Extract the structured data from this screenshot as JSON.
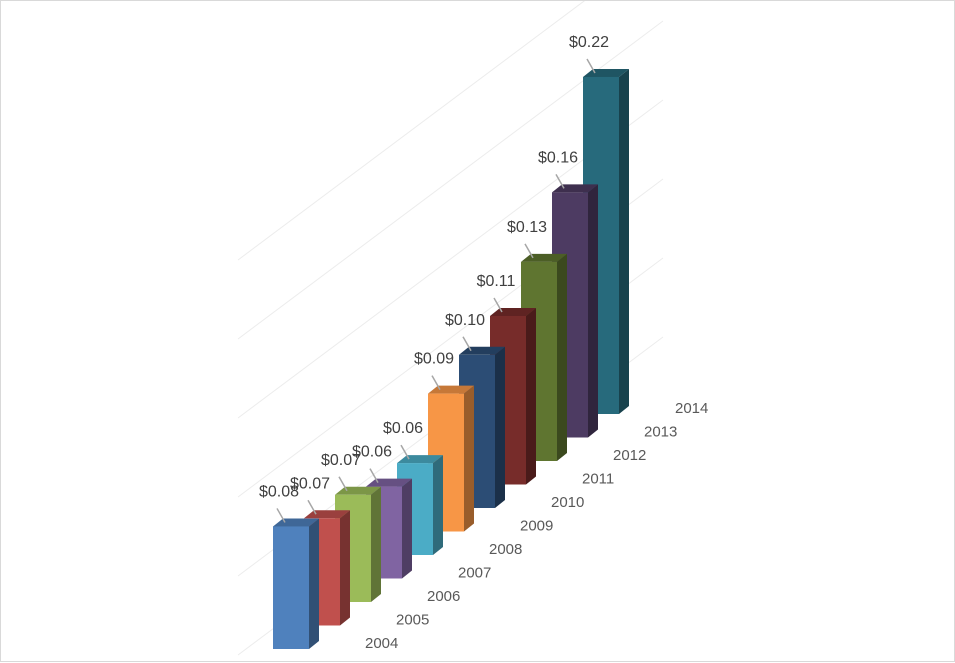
{
  "chart_data": {
    "type": "bar",
    "style": "3d-column-diagonal",
    "categories": [
      "2004",
      "2005",
      "2006",
      "2007",
      "2008",
      "2009",
      "2010",
      "2011",
      "2012",
      "2013",
      "2014"
    ],
    "values": [
      0.08,
      0.07,
      0.07,
      0.06,
      0.06,
      0.09,
      0.1,
      0.11,
      0.13,
      0.16,
      0.22
    ],
    "data_labels": [
      "$0.08",
      "$0.07",
      "$0.07",
      "$0.06",
      "$0.06",
      "$0.09",
      "$0.10",
      "$0.11",
      "$0.13",
      "$0.16",
      "$0.22"
    ],
    "colors": [
      "#4F81BD",
      "#C0504D",
      "#9BBB59",
      "#8064A2",
      "#4BACC6",
      "#F79646",
      "#2C4D75",
      "#772C2A",
      "#5F7530",
      "#4D3B62",
      "#276A7C"
    ],
    "title": "",
    "xlabel": "",
    "ylabel": "",
    "ylim": [
      0,
      0.22
    ],
    "grid": true,
    "legend": "none"
  }
}
